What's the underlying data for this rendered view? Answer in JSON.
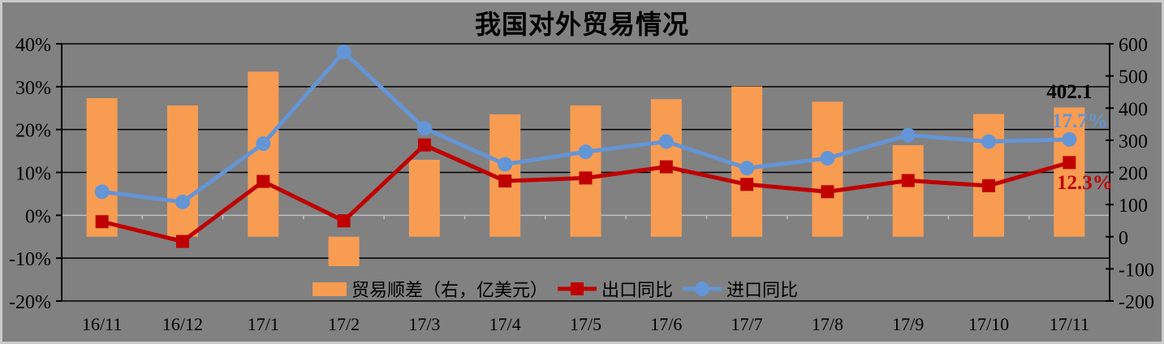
{
  "colors": {
    "background": "#818181",
    "frame_border": "#cbcbcb",
    "bar": "#F89C52",
    "export_line": "#C00000",
    "import_line": "#6495D6",
    "gridline": "#000000",
    "zero_axis": "#C0C0C0",
    "text": "#000000"
  },
  "chart_data": {
    "type": "combo-bar-line",
    "title": "我国对外贸易情况",
    "categories": [
      "16/11",
      "16/12",
      "17/1",
      "17/2",
      "17/3",
      "17/4",
      "17/5",
      "17/6",
      "17/7",
      "17/8",
      "17/9",
      "17/10",
      "17/11"
    ],
    "series": [
      {
        "name": "贸易顺差（右，亿美元）",
        "type": "bar",
        "axis": "right",
        "color": "#F89C52",
        "values": [
          431.0,
          408.2,
          513.5,
          -91.5,
          239.3,
          380.5,
          408.1,
          427.7,
          467.3,
          419.9,
          284.7,
          381.7,
          402.1
        ]
      },
      {
        "name": "出口同比",
        "type": "line",
        "marker": "square",
        "axis": "left",
        "color": "#C00000",
        "values": [
          -1.5,
          -6.1,
          7.9,
          -1.3,
          16.4,
          8.0,
          8.7,
          11.3,
          7.2,
          5.5,
          8.1,
          6.9,
          12.3
        ]
      },
      {
        "name": "进口同比",
        "type": "line",
        "marker": "circle",
        "axis": "left",
        "color": "#6495D6",
        "values": [
          5.5,
          3.1,
          16.7,
          38.1,
          20.3,
          11.9,
          14.8,
          17.2,
          11.0,
          13.3,
          18.7,
          17.2,
          17.7
        ]
      }
    ],
    "left_axis": {
      "min": -20,
      "max": 40,
      "step": 10,
      "unit": "%",
      "tick_labels": [
        "40%",
        "30%",
        "20%",
        "10%",
        "0%",
        "-10%",
        "-20%"
      ]
    },
    "right_axis": {
      "min": -200,
      "max": 600,
      "step": 100,
      "tick_labels": [
        "600",
        "500",
        "400",
        "300",
        "200",
        "100",
        "0",
        "-100",
        "-200"
      ]
    },
    "legend_position": "bottom",
    "grid": true,
    "annotations": [
      {
        "text": "402.1",
        "series": "贸易顺差（右，亿美元）",
        "category": "17/11",
        "color": "#000000"
      },
      {
        "text": "17.7%",
        "series": "进口同比",
        "category": "17/11",
        "color": "#6495D6"
      },
      {
        "text": "12.3%",
        "series": "出口同比",
        "category": "17/11",
        "color": "#C00000"
      }
    ]
  }
}
